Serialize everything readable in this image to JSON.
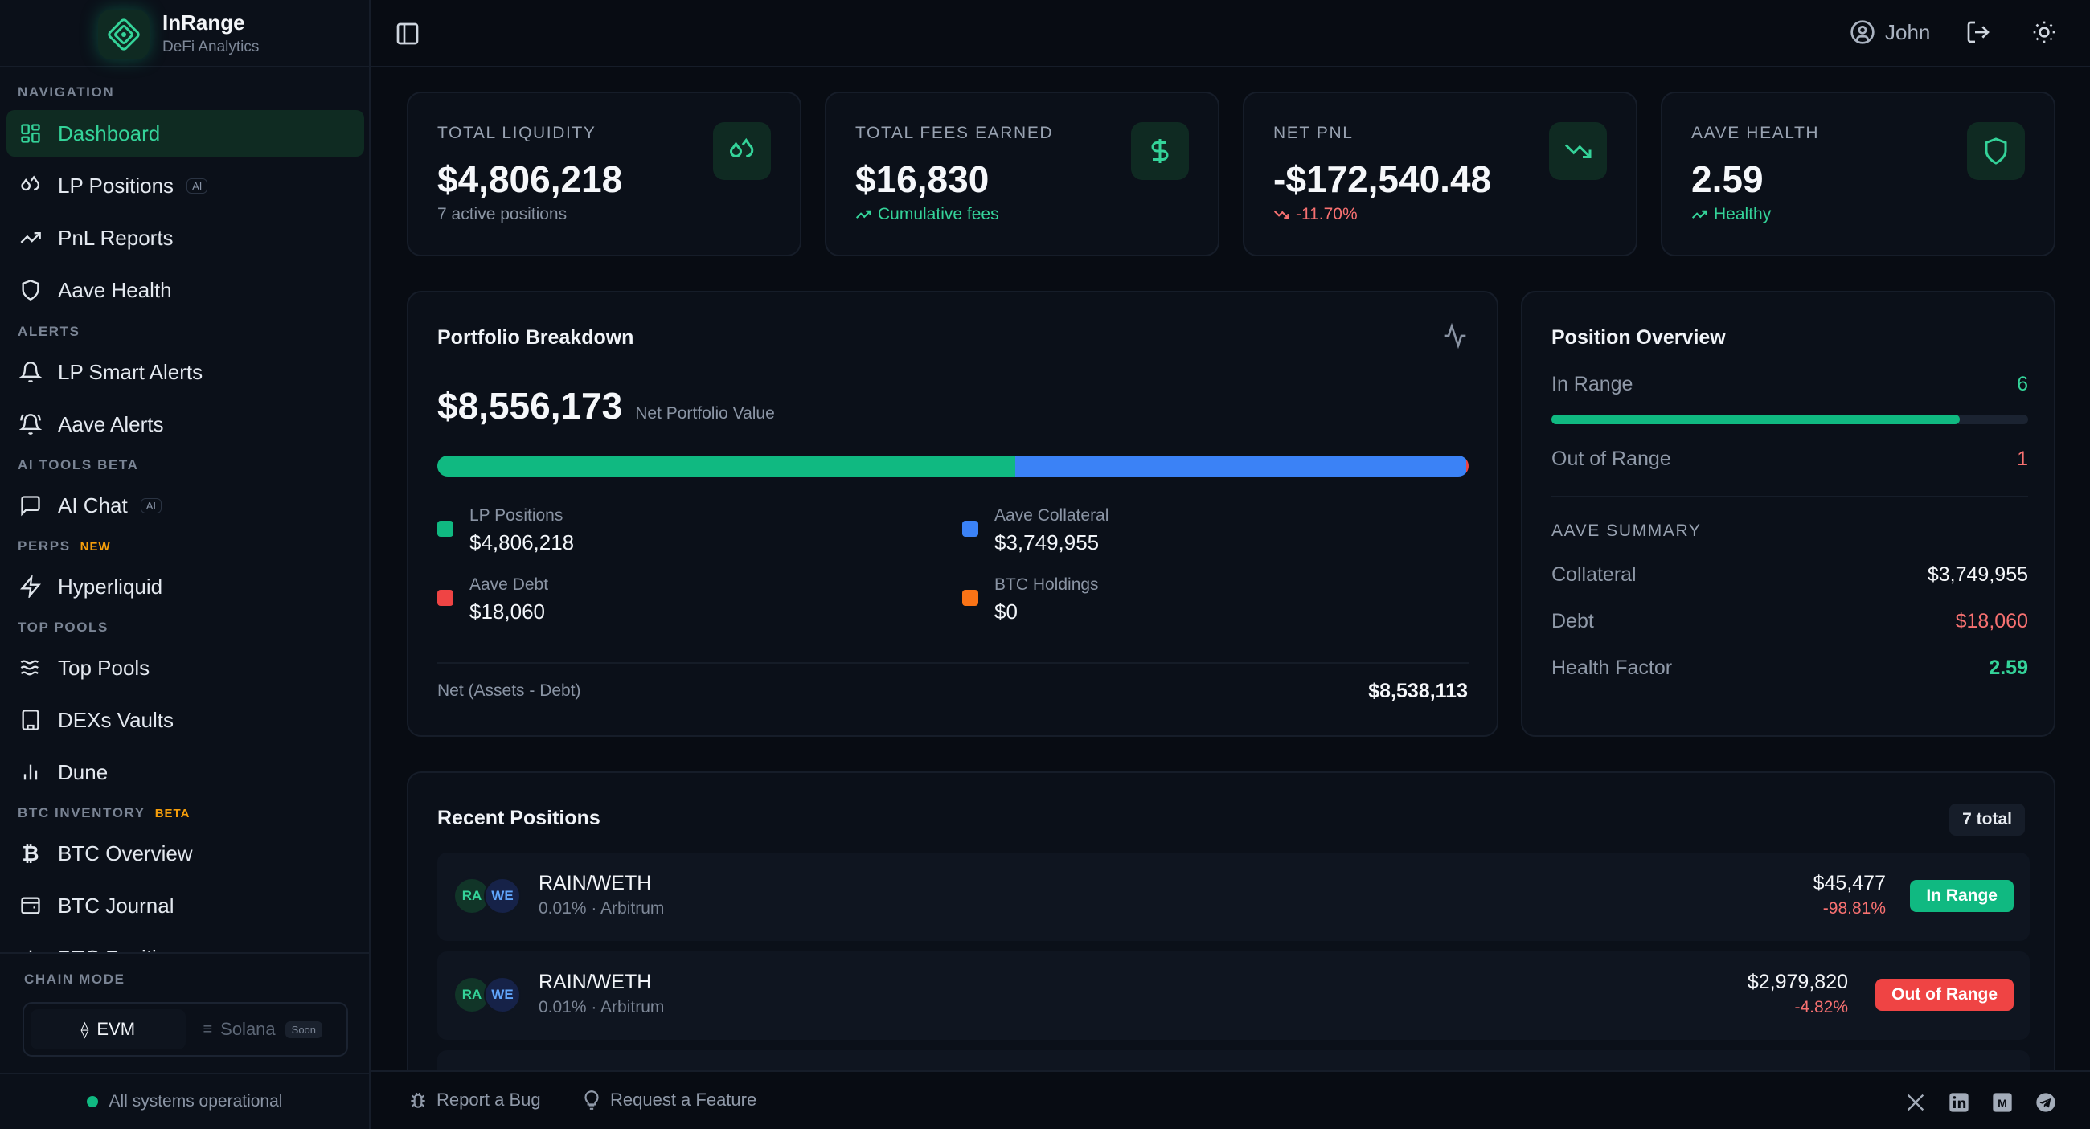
{
  "brand": {
    "name": "InRange",
    "subtitle": "DeFi Analytics"
  },
  "sidebar": {
    "sections": {
      "navigation": "NAVIGATION",
      "alerts": "ALERTS",
      "ai_tools": "AI TOOLS BETA",
      "perps": "PERPS",
      "perps_tag": "NEW",
      "top_pools": "TOP POOLS",
      "btc_inventory": "BTC INVENTORY",
      "btc_tag": "BETA"
    },
    "items": {
      "dashboard": "Dashboard",
      "lp_positions": "LP Positions",
      "lp_positions_tag": "AI",
      "pnl_reports": "PnL Reports",
      "aave_health": "Aave Health",
      "lp_smart_alerts": "LP Smart Alerts",
      "aave_alerts": "Aave Alerts",
      "ai_chat": "AI Chat",
      "ai_chat_tag": "AI",
      "hyperliquid": "Hyperliquid",
      "top_pools": "Top Pools",
      "dexs_vaults": "DEXs Vaults",
      "dune": "Dune",
      "btc_overview": "BTC Overview",
      "btc_journal": "BTC Journal",
      "btc_partial": "BTC Positi..."
    },
    "chain_mode": {
      "label": "CHAIN MODE",
      "evm": "EVM",
      "solana": "Solana",
      "soon": "Soon",
      "selected": "EVM"
    },
    "status": "All systems operational"
  },
  "topbar": {
    "user": "John"
  },
  "stats": [
    {
      "label": "TOTAL LIQUIDITY",
      "value": "$4,806,218",
      "sub": "7 active positions",
      "icon": "droplets-icon"
    },
    {
      "label": "TOTAL FEES EARNED",
      "value": "$16,830",
      "sub": "Cumulative fees",
      "icon": "dollar-icon"
    },
    {
      "label": "NET PNL",
      "value": "-$172,540.48",
      "sub": "-11.70%",
      "icon": "trending-down-icon"
    },
    {
      "label": "AAVE HEALTH",
      "value": "2.59",
      "sub": "Healthy",
      "icon": "shield-icon"
    }
  ],
  "portfolio": {
    "title": "Portfolio Breakdown",
    "value": "$8,556,173",
    "value_label": "Net Portfolio Value",
    "segments": [
      {
        "name": "LP Positions",
        "value": "$4,806,218",
        "amount": 4806218,
        "color": "#10b981"
      },
      {
        "name": "Aave Collateral",
        "value": "$3,749,955",
        "amount": 3749955,
        "color": "#3b82f6"
      },
      {
        "name": "Aave Debt",
        "value": "$18,060",
        "amount": 18060,
        "color": "#ef4444"
      },
      {
        "name": "BTC Holdings",
        "value": "$0",
        "amount": 0,
        "color": "#f97316"
      }
    ],
    "net_label": "Net (Assets - Debt)",
    "net_value": "$8,538,113"
  },
  "overview": {
    "title": "Position Overview",
    "in_range_label": "In Range",
    "in_range_count": "6",
    "in_range_fraction": 0.857,
    "out_range_label": "Out of Range",
    "out_range_count": "1",
    "aave_summary": "AAVE SUMMARY",
    "collateral_label": "Collateral",
    "collateral": "$3,749,955",
    "debt_label": "Debt",
    "debt": "$18,060",
    "hf_label": "Health Factor",
    "hf": "2.59"
  },
  "recent": {
    "title": "Recent Positions",
    "total": "7 total",
    "rows": [
      {
        "token_a": "RA",
        "token_b": "WE",
        "pair": "RAIN/WETH",
        "meta": "0.01% · Arbitrum",
        "amount": "$45,477",
        "change": "-98.81%",
        "status": "In Range"
      },
      {
        "token_a": "RA",
        "token_b": "WE",
        "pair": "RAIN/WETH",
        "meta": "0.01% · Arbitrum",
        "amount": "$2,979,820",
        "change": "-4.82%",
        "status": "Out of Range"
      }
    ]
  },
  "footer": {
    "bug": "Report a Bug",
    "feature": "Request a Feature"
  }
}
